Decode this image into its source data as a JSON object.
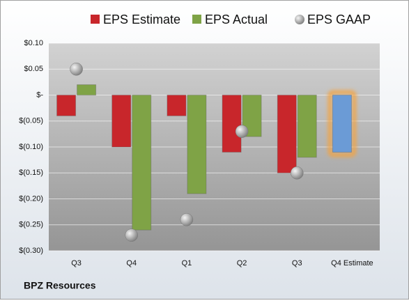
{
  "chart_data": {
    "type": "bar",
    "footer": "BPZ Resources",
    "categories": [
      "Q3",
      "Q4",
      "Q1",
      "Q2",
      "Q3",
      "Q4 Estimate"
    ],
    "series": [
      {
        "name": "EPS Estimate",
        "color": "#c8262b",
        "colors": [
          "#c8262b",
          "#c8262b",
          "#c8262b",
          "#c8262b",
          "#c8262b",
          "#6b9bd6"
        ],
        "values": [
          -0.04,
          -0.1,
          -0.04,
          -0.11,
          -0.15,
          -0.11
        ]
      },
      {
        "name": "EPS Actual",
        "color": "#7fa346",
        "values": [
          0.02,
          -0.26,
          -0.19,
          -0.08,
          -0.12,
          null
        ]
      },
      {
        "name": "EPS GAAP",
        "color": "#a9a9a9",
        "type": "scatter",
        "values": [
          0.05,
          -0.27,
          -0.24,
          -0.07,
          -0.15,
          null
        ]
      }
    ],
    "highlight_color": "#f5a33c",
    "ylim": [
      -0.3,
      0.1
    ],
    "yticks": [
      {
        "value": 0.1,
        "label": "$0.10"
      },
      {
        "value": 0.05,
        "label": "$0.05"
      },
      {
        "value": 0,
        "label": "$-"
      },
      {
        "value": -0.05,
        "label": "$(0.05)"
      },
      {
        "value": -0.1,
        "label": "$(0.10)"
      },
      {
        "value": -0.15,
        "label": "$(0.15)"
      },
      {
        "value": -0.2,
        "label": "$(0.20)"
      },
      {
        "value": -0.25,
        "label": "$(0.25)"
      },
      {
        "value": -0.3,
        "label": "$(0.30)"
      }
    ],
    "grid": true
  }
}
